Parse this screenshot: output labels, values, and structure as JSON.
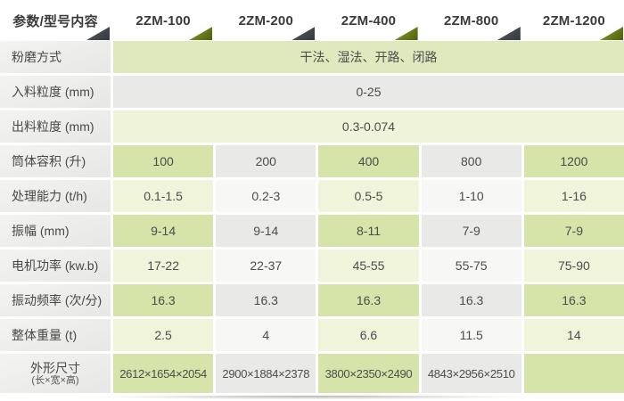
{
  "colors": {
    "cell_green_dark": "#d6e4a9",
    "cell_green_light": "#f0f4da",
    "cell_gray_dark": "#e9e9e8",
    "cell_gray_light": "#f7f7f5",
    "span_row1_green": "#dfe9bd",
    "span_row2_gray": "#e9e9e8",
    "span_row3_green": "#eff3d9",
    "label_column_gray": "#ececeb",
    "triangle_dark": "#3f4449",
    "triangle_green": "#5f7313",
    "text": "#4c4c4c"
  },
  "header": {
    "param_label": "参数/型号内容",
    "models": [
      "2ZM-100",
      "2ZM-200",
      "2ZM-400",
      "2ZM-800",
      "2ZM-1200"
    ]
  },
  "rows": [
    {
      "label": "粉磨方式",
      "span": "干法、湿法、开路、闭路"
    },
    {
      "label": "入料粒度 (mm)",
      "span": "0-25"
    },
    {
      "label": "出料粒度 (mm)",
      "span": "0.3-0.074"
    },
    {
      "label": "筒体容积 (升)",
      "values": [
        "100",
        "200",
        "400",
        "800",
        "1200"
      ]
    },
    {
      "label": "处理能力 (t/h)",
      "values": [
        "0.1-1.5",
        "0.2-3",
        "0.5-5",
        "1-10",
        "1-16"
      ]
    },
    {
      "label": "振幅 (mm)",
      "values": [
        "9-14",
        "9-14",
        "8-11",
        "7-9",
        "7-9"
      ]
    },
    {
      "label": "电机功率 (kw.b)",
      "values": [
        "17-22",
        "22-37",
        "45-55",
        "55-75",
        "75-90"
      ]
    },
    {
      "label": "振动频率 (次/分)",
      "values": [
        "16.3",
        "16.3",
        "16.3",
        "16.3",
        "16.3"
      ]
    },
    {
      "label": "整体重量 (t)",
      "values": [
        "2.5",
        "4",
        "6.6",
        "11.5",
        "14"
      ]
    },
    {
      "label": "外形尺寸",
      "label_sub": "(长×宽×高)",
      "values": [
        "2612×1654×2054",
        "2900×1884×2378",
        "3800×2350×2490",
        "4843×2956×2510",
        ""
      ]
    }
  ]
}
